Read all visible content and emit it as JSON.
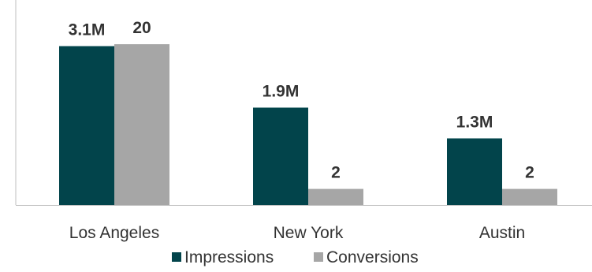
{
  "chart_data": {
    "type": "bar",
    "categories": [
      "Los Angeles",
      "New York",
      "Austin"
    ],
    "series": [
      {
        "name": "Impressions",
        "values": [
          3100000,
          1900000,
          1300000
        ],
        "labels": [
          "3.1M",
          "1.9M",
          "1.3M"
        ],
        "color": "#02444B"
      },
      {
        "name": "Conversions",
        "values": [
          20,
          2,
          2
        ],
        "labels": [
          "20",
          "2",
          "2"
        ],
        "color": "#A6A6A6"
      }
    ],
    "secondary_axis_series": "Conversions",
    "legend_position": "bottom",
    "grid": false,
    "title": "",
    "xlabel": "",
    "ylabel": ""
  }
}
